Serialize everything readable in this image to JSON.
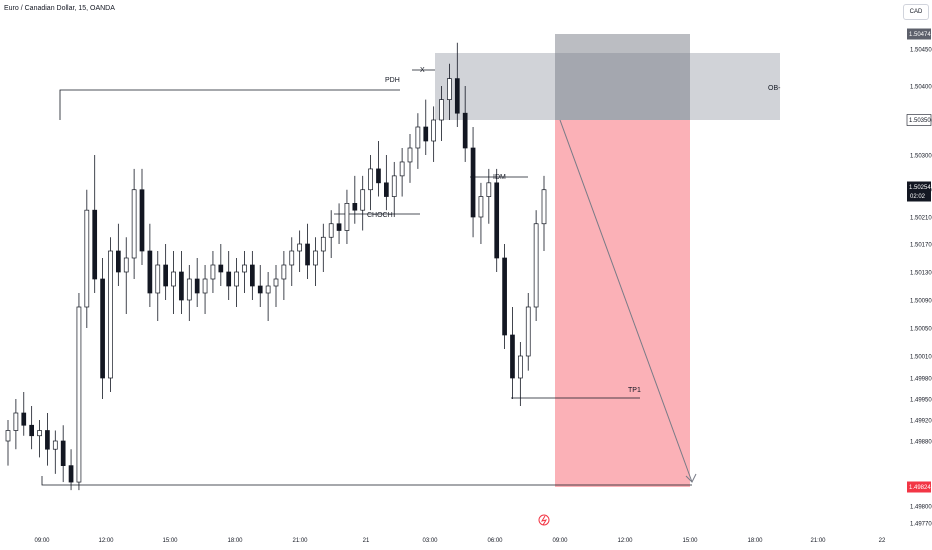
{
  "header": {
    "title": "Euro / Canadian Dollar, 15, OANDA",
    "currency_button": "CAD"
  },
  "chart_data": {
    "type": "candlestick",
    "symbol": "EURCAD",
    "timeframe": "15",
    "source": "OANDA",
    "y_ticks": [
      "1.50450",
      "1.50400",
      "1.50350",
      "1.50300",
      "1.50250",
      "1.50210",
      "1.50170",
      "1.50130",
      "1.50090",
      "1.50050",
      "1.50010",
      "1.49980",
      "1.49950",
      "1.49920",
      "1.49880",
      "1.49800",
      "1.49770"
    ],
    "x_ticks": [
      "09:00",
      "12:00",
      "15:00",
      "18:00",
      "21:00",
      "21",
      "03:00",
      "06:00",
      "09:00",
      "12:00",
      "15:00",
      "18:00",
      "21:00",
      "22"
    ],
    "price_labels": [
      {
        "value": "1.50474",
        "style": "dark"
      },
      {
        "value": "1.50350",
        "style": "outline"
      },
      {
        "value": "1.50254",
        "time": "02:02",
        "style": "current"
      },
      {
        "value": "1.49824",
        "style": "red"
      }
    ],
    "annotations": {
      "pdh": "PDH",
      "x_mark": "X",
      "choch": "CHOCH",
      "idm": "IDM",
      "ob": "OB-",
      "tp1": "TP1"
    },
    "candles": [
      [
        1.4988,
        1.4992,
        1.4985,
        1.499
      ],
      [
        1.499,
        1.4995,
        1.4987,
        1.4993
      ],
      [
        1.4993,
        1.4996,
        1.4989,
        1.4991
      ],
      [
        1.4991,
        1.4994,
        1.4987,
        1.4989
      ],
      [
        1.4989,
        1.4992,
        1.4986,
        1.499
      ],
      [
        1.499,
        1.4993,
        1.4985,
        1.4987
      ],
      [
        1.4987,
        1.499,
        1.4984,
        1.4988
      ],
      [
        1.4988,
        1.4991,
        1.4983,
        1.4985
      ],
      [
        1.4985,
        1.4987,
        1.4982,
        1.4983
      ],
      [
        1.4983,
        1.501,
        1.4982,
        1.5008
      ],
      [
        1.5008,
        1.5025,
        1.5005,
        1.5022
      ],
      [
        1.5022,
        1.503,
        1.501,
        1.5012
      ],
      [
        1.5012,
        1.5015,
        1.4995,
        1.4998
      ],
      [
        1.4998,
        1.5018,
        1.4996,
        1.5016
      ],
      [
        1.5016,
        1.502,
        1.5011,
        1.5013
      ],
      [
        1.5013,
        1.5018,
        1.5007,
        1.5015
      ],
      [
        1.5015,
        1.5028,
        1.5012,
        1.5025
      ],
      [
        1.5025,
        1.5028,
        1.5014,
        1.5016
      ],
      [
        1.5016,
        1.502,
        1.5008,
        1.501
      ],
      [
        1.501,
        1.5016,
        1.5006,
        1.5014
      ],
      [
        1.5014,
        1.5017,
        1.5009,
        1.5011
      ],
      [
        1.5011,
        1.5016,
        1.5007,
        1.5013
      ],
      [
        1.5013,
        1.5016,
        1.5007,
        1.5009
      ],
      [
        1.5009,
        1.5014,
        1.5006,
        1.5012
      ],
      [
        1.5012,
        1.5015,
        1.5008,
        1.501
      ],
      [
        1.501,
        1.5014,
        1.5007,
        1.5012
      ],
      [
        1.5012,
        1.5016,
        1.501,
        1.5014
      ],
      [
        1.5014,
        1.5017,
        1.5011,
        1.5013
      ],
      [
        1.5013,
        1.5016,
        1.5009,
        1.5011
      ],
      [
        1.5011,
        1.5015,
        1.5008,
        1.5013
      ],
      [
        1.5013,
        1.5016,
        1.501,
        1.5014
      ],
      [
        1.5014,
        1.5016,
        1.5009,
        1.5011
      ],
      [
        1.5011,
        1.5014,
        1.5008,
        1.501
      ],
      [
        1.501,
        1.5013,
        1.5006,
        1.5011
      ],
      [
        1.5011,
        1.5014,
        1.5008,
        1.5012
      ],
      [
        1.5012,
        1.5016,
        1.5009,
        1.5014
      ],
      [
        1.5014,
        1.5018,
        1.5011,
        1.5016
      ],
      [
        1.5016,
        1.5019,
        1.5013,
        1.5017
      ],
      [
        1.5017,
        1.502,
        1.5012,
        1.5014
      ],
      [
        1.5014,
        1.5018,
        1.5011,
        1.5016
      ],
      [
        1.5016,
        1.502,
        1.5013,
        1.5018
      ],
      [
        1.5018,
        1.5022,
        1.5015,
        1.502
      ],
      [
        1.502,
        1.5023,
        1.5017,
        1.5019
      ],
      [
        1.5019,
        1.5025,
        1.5017,
        1.5023
      ],
      [
        1.5023,
        1.5027,
        1.502,
        1.5022
      ],
      [
        1.5022,
        1.5027,
        1.5019,
        1.5025
      ],
      [
        1.5025,
        1.503,
        1.5022,
        1.5028
      ],
      [
        1.5028,
        1.5032,
        1.5024,
        1.5026
      ],
      [
        1.5026,
        1.503,
        1.5022,
        1.5024
      ],
      [
        1.5024,
        1.5029,
        1.5021,
        1.5027
      ],
      [
        1.5027,
        1.5031,
        1.5024,
        1.5029
      ],
      [
        1.5029,
        1.5033,
        1.5026,
        1.5031
      ],
      [
        1.5031,
        1.5036,
        1.5028,
        1.5034
      ],
      [
        1.5034,
        1.5038,
        1.503,
        1.5032
      ],
      [
        1.5032,
        1.5037,
        1.5029,
        1.5035
      ],
      [
        1.5035,
        1.504,
        1.5032,
        1.5038
      ],
      [
        1.5038,
        1.5043,
        1.5035,
        1.5041
      ],
      [
        1.5041,
        1.5046,
        1.5034,
        1.5036
      ],
      [
        1.5036,
        1.504,
        1.5029,
        1.5031
      ],
      [
        1.5031,
        1.5034,
        1.5018,
        1.5021
      ],
      [
        1.5021,
        1.5026,
        1.5017,
        1.5024
      ],
      [
        1.5024,
        1.5028,
        1.502,
        1.5026
      ],
      [
        1.5026,
        1.5028,
        1.5013,
        1.5015
      ],
      [
        1.5015,
        1.5017,
        1.5002,
        1.5004
      ],
      [
        1.5004,
        1.5008,
        1.4995,
        1.4998
      ],
      [
        1.4998,
        1.5003,
        1.4994,
        1.5001
      ],
      [
        1.5001,
        1.501,
        1.4999,
        1.5008
      ],
      [
        1.5008,
        1.5022,
        1.5006,
        1.502
      ],
      [
        1.502,
        1.5027,
        1.5016,
        1.5025
      ]
    ]
  }
}
